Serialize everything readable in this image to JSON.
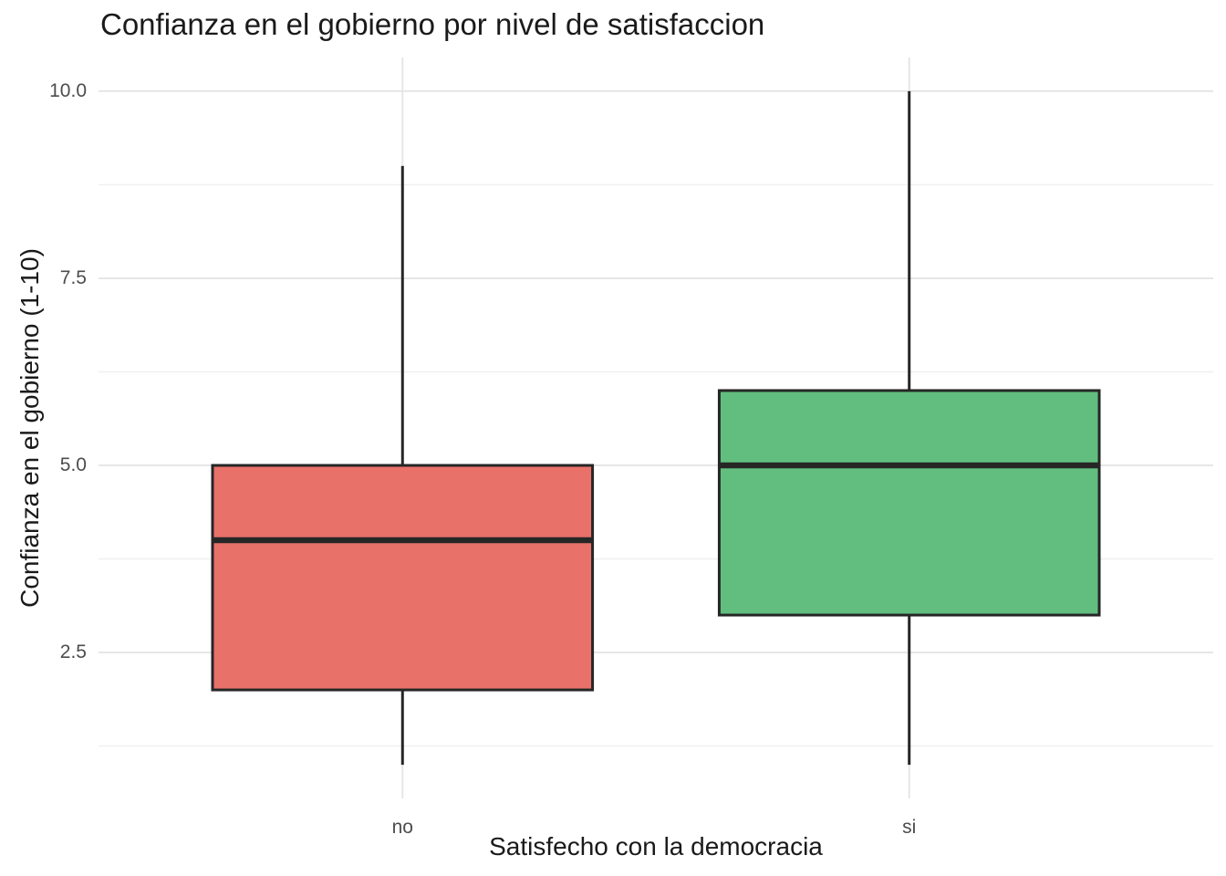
{
  "title": "Confianza en el gobierno por nivel de satisfaccion",
  "chart_data": {
    "type": "boxplot",
    "title": "Confianza en el gobierno por nivel de satisfaccion",
    "xlabel": "Satisfecho con la democracia",
    "ylabel": "Confianza en el gobierno (1-10)",
    "categories": [
      "no",
      "si"
    ],
    "series": [
      {
        "name": "no",
        "whisker_low": 1,
        "q1": 2,
        "median": 4,
        "q3": 5,
        "whisker_high": 9,
        "fill": "#E8716A"
      },
      {
        "name": "si",
        "whisker_low": 1,
        "q1": 3,
        "median": 5,
        "q3": 6,
        "whisker_high": 10,
        "fill": "#61BE7F"
      }
    ],
    "y_ticks": [
      {
        "value": 2.5,
        "label": "2.5"
      },
      {
        "value": 5.0,
        "label": "5.0"
      },
      {
        "value": 7.5,
        "label": "7.5"
      },
      {
        "value": 10.0,
        "label": "10.0"
      }
    ],
    "y_minor_ticks": [
      1.25,
      3.75,
      6.25,
      8.75
    ],
    "ylim": [
      0.55,
      10.45
    ],
    "grid": true,
    "legend": false
  },
  "style": {
    "background": "#FFFFFF",
    "grid_major_color": "#E6E6E6",
    "grid_minor_color": "#F0F0F0",
    "box_border_color": "#262626",
    "median_color": "#262626",
    "whisker_color": "#262626",
    "axis_text_color": "#4D4D4D",
    "title_color": "#1A1A1A"
  }
}
